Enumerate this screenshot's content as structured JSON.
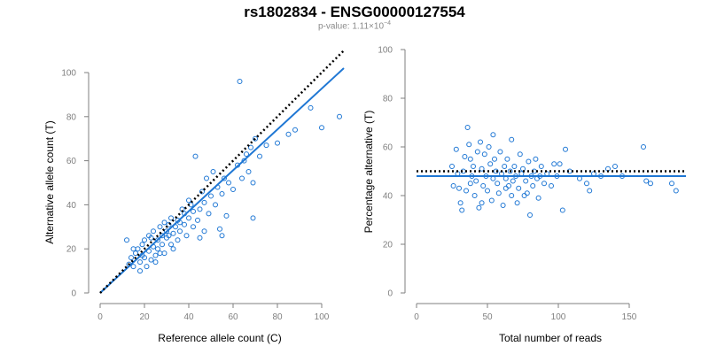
{
  "figure": {
    "title": "rs1802834 - ENSG00000127554",
    "pvalue_prefix": "p-value: 1.11×10",
    "pvalue_exponent": "−4",
    "accent_color": "#1f77d4",
    "reference_line_color": "#000000"
  },
  "chart_data": [
    {
      "type": "scatter",
      "panel": "left",
      "xlabel": "Reference allele count (C)",
      "ylabel": "Alternative allele count (T)",
      "xlim": [
        0,
        110
      ],
      "ylim": [
        0,
        100
      ],
      "xticks": [
        0,
        20,
        40,
        60,
        80,
        100
      ],
      "yticks": [
        0,
        20,
        40,
        60,
        80,
        100
      ],
      "marker": "open-circle",
      "marker_color": "#1f77d4",
      "fit_line": {
        "style": "solid",
        "color": "#1f77d4",
        "x": [
          0,
          110
        ],
        "y": [
          0,
          102
        ]
      },
      "reference_line": {
        "style": "dotted",
        "color": "#000000",
        "x": [
          0,
          110
        ],
        "y": [
          0,
          110
        ]
      },
      "points": [
        [
          12,
          24
        ],
        [
          14,
          16
        ],
        [
          15,
          12
        ],
        [
          16,
          18
        ],
        [
          17,
          20
        ],
        [
          18,
          14
        ],
        [
          19,
          22
        ],
        [
          19,
          17
        ],
        [
          20,
          24
        ],
        [
          21,
          12
        ],
        [
          22,
          19
        ],
        [
          22,
          26
        ],
        [
          23,
          15
        ],
        [
          24,
          21
        ],
        [
          24,
          28
        ],
        [
          25,
          17
        ],
        [
          26,
          24
        ],
        [
          26,
          20
        ],
        [
          27,
          30
        ],
        [
          28,
          22
        ],
        [
          28,
          26
        ],
        [
          29,
          18
        ],
        [
          30,
          28
        ],
        [
          30,
          25
        ],
        [
          31,
          31
        ],
        [
          32,
          22
        ],
        [
          32,
          34
        ],
        [
          33,
          27
        ],
        [
          34,
          30
        ],
        [
          35,
          24
        ],
        [
          35,
          33
        ],
        [
          36,
          28
        ],
        [
          37,
          38
        ],
        [
          38,
          31
        ],
        [
          38,
          36
        ],
        [
          39,
          26
        ],
        [
          40,
          34
        ],
        [
          41,
          40
        ],
        [
          42,
          30
        ],
        [
          42,
          37
        ],
        [
          43,
          62
        ],
        [
          44,
          33
        ],
        [
          45,
          38
        ],
        [
          46,
          46
        ],
        [
          47,
          41
        ],
        [
          48,
          52
        ],
        [
          49,
          36
        ],
        [
          50,
          44
        ],
        [
          51,
          55
        ],
        [
          52,
          40
        ],
        [
          53,
          48
        ],
        [
          54,
          29
        ],
        [
          55,
          45
        ],
        [
          56,
          52
        ],
        [
          57,
          35
        ],
        [
          58,
          50
        ],
        [
          60,
          47
        ],
        [
          62,
          58
        ],
        [
          63,
          96
        ],
        [
          64,
          52
        ],
        [
          65,
          60
        ],
        [
          66,
          63
        ],
        [
          67,
          55
        ],
        [
          68,
          66
        ],
        [
          69,
          50
        ],
        [
          70,
          70
        ],
        [
          72,
          62
        ],
        [
          75,
          67
        ],
        [
          80,
          68
        ],
        [
          85,
          72
        ],
        [
          88,
          74
        ],
        [
          95,
          84
        ],
        [
          100,
          75
        ],
        [
          108,
          80
        ],
        [
          18,
          10
        ],
        [
          25,
          14
        ],
        [
          33,
          20
        ],
        [
          45,
          25
        ],
        [
          55,
          26
        ],
        [
          69,
          34
        ],
        [
          13,
          13
        ],
        [
          15,
          20
        ],
        [
          20,
          16
        ],
        [
          23,
          25
        ],
        [
          27,
          18
        ],
        [
          29,
          32
        ],
        [
          31,
          26
        ],
        [
          36,
          32
        ],
        [
          40,
          42
        ],
        [
          47,
          28
        ]
      ]
    },
    {
      "type": "scatter",
      "panel": "right",
      "xlabel": "Total number of reads",
      "ylabel": "Percentage alternative (T)",
      "xlim": [
        0,
        190
      ],
      "ylim": [
        0,
        100
      ],
      "xticks": [
        0,
        50,
        100,
        150
      ],
      "yticks": [
        0,
        20,
        40,
        60,
        80,
        100
      ],
      "marker": "open-circle",
      "marker_color": "#1f77d4",
      "fit_line": {
        "style": "solid",
        "color": "#1f77d4",
        "x": [
          0,
          190
        ],
        "y": [
          48,
          48
        ]
      },
      "reference_line": {
        "style": "dotted",
        "color": "#000000",
        "x": [
          0,
          190
        ],
        "y": [
          50,
          50
        ]
      },
      "points": [
        [
          25,
          52
        ],
        [
          26,
          44
        ],
        [
          28,
          59
        ],
        [
          29,
          49
        ],
        [
          30,
          43
        ],
        [
          31,
          37
        ],
        [
          32,
          34
        ],
        [
          33,
          50
        ],
        [
          34,
          56
        ],
        [
          35,
          42
        ],
        [
          36,
          68
        ],
        [
          37,
          61
        ],
        [
          38,
          55
        ],
        [
          39,
          48
        ],
        [
          40,
          52
        ],
        [
          41,
          40
        ],
        [
          42,
          46
        ],
        [
          43,
          58
        ],
        [
          44,
          35
        ],
        [
          45,
          62
        ],
        [
          46,
          51
        ],
        [
          47,
          44
        ],
        [
          48,
          57
        ],
        [
          49,
          48
        ],
        [
          50,
          42
        ],
        [
          51,
          60
        ],
        [
          52,
          53
        ],
        [
          53,
          38
        ],
        [
          54,
          47
        ],
        [
          55,
          55
        ],
        [
          56,
          50
        ],
        [
          57,
          45
        ],
        [
          58,
          41
        ],
        [
          59,
          58
        ],
        [
          60,
          49
        ],
        [
          61,
          36
        ],
        [
          62,
          52
        ],
        [
          63,
          47
        ],
        [
          64,
          55
        ],
        [
          65,
          44
        ],
        [
          66,
          50
        ],
        [
          67,
          40
        ],
        [
          68,
          46
        ],
        [
          69,
          52
        ],
        [
          70,
          48
        ],
        [
          71,
          37
        ],
        [
          72,
          43
        ],
        [
          73,
          57
        ],
        [
          74,
          49
        ],
        [
          75,
          51
        ],
        [
          77,
          46
        ],
        [
          78,
          41
        ],
        [
          79,
          54
        ],
        [
          80,
          32
        ],
        [
          81,
          48
        ],
        [
          82,
          44
        ],
        [
          83,
          50
        ],
        [
          84,
          55
        ],
        [
          85,
          47
        ],
        [
          86,
          39
        ],
        [
          88,
          52
        ],
        [
          90,
          45
        ],
        [
          92,
          49
        ],
        [
          95,
          44
        ],
        [
          97,
          53
        ],
        [
          99,
          48
        ],
        [
          101,
          53
        ],
        [
          103,
          34
        ],
        [
          105,
          59
        ],
        [
          108,
          50
        ],
        [
          115,
          47
        ],
        [
          120,
          45
        ],
        [
          122,
          42
        ],
        [
          125,
          49
        ],
        [
          130,
          48
        ],
        [
          135,
          51
        ],
        [
          140,
          52
        ],
        [
          145,
          48
        ],
        [
          160,
          60
        ],
        [
          162,
          46
        ],
        [
          165,
          45
        ],
        [
          180,
          45
        ],
        [
          183,
          42
        ],
        [
          38,
          45
        ],
        [
          46,
          37
        ],
        [
          54,
          65
        ],
        [
          63,
          43
        ],
        [
          67,
          63
        ],
        [
          76,
          40
        ],
        [
          87,
          48
        ]
      ]
    }
  ]
}
